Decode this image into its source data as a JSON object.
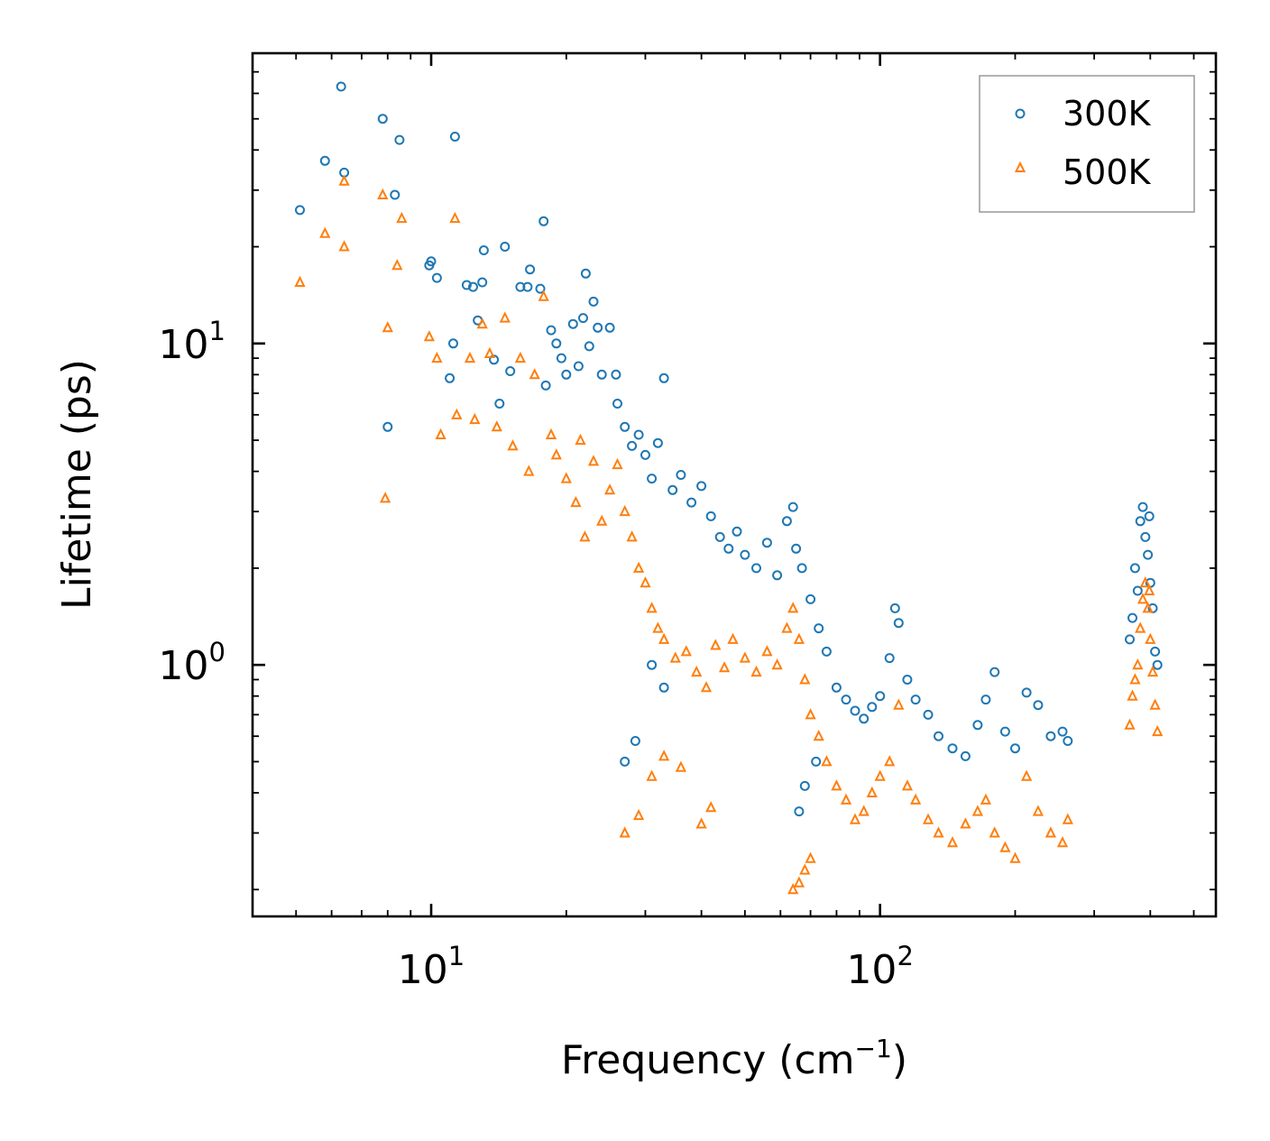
{
  "chart_data": {
    "type": "scatter",
    "title": "",
    "xlabel": "Frequency (cm",
    "xlabel_superscript": "−1",
    "xlabel_suffix": ")",
    "ylabel": "Lifetime (ps)",
    "xscale": "log",
    "yscale": "log",
    "xlim": [
      4.0,
      560
    ],
    "ylim": [
      0.165,
      80
    ],
    "x_ticks": [
      {
        "value": 10,
        "base": "10",
        "exponent": "1"
      },
      {
        "value": 100,
        "base": "10",
        "exponent": "2"
      }
    ],
    "y_ticks": [
      {
        "value": 1,
        "base": "10",
        "exponent": "0"
      },
      {
        "value": 10,
        "base": "10",
        "exponent": "1"
      }
    ],
    "legend_position": "top-right",
    "series": [
      {
        "name": "300K",
        "marker": "circle",
        "color": "#1f77b4",
        "points": [
          [
            5.1,
            26
          ],
          [
            5.8,
            37
          ],
          [
            6.3,
            63
          ],
          [
            6.4,
            34
          ],
          [
            7.8,
            50
          ],
          [
            8.3,
            29
          ],
          [
            8.5,
            43
          ],
          [
            8.0,
            5.5
          ],
          [
            9.9,
            17.5
          ],
          [
            10.0,
            18
          ],
          [
            10.3,
            16
          ],
          [
            11.0,
            7.8
          ],
          [
            11.2,
            10
          ],
          [
            11.3,
            44
          ],
          [
            12.0,
            15.2
          ],
          [
            12.4,
            15.0
          ],
          [
            12.7,
            11.8
          ],
          [
            13.0,
            15.5
          ],
          [
            13.1,
            19.5
          ],
          [
            13.8,
            8.9
          ],
          [
            14.2,
            6.5
          ],
          [
            14.6,
            20
          ],
          [
            15.0,
            8.2
          ],
          [
            15.8,
            15.0
          ],
          [
            16.4,
            15.0
          ],
          [
            16.6,
            17.0
          ],
          [
            17.5,
            14.8
          ],
          [
            17.8,
            24
          ],
          [
            18.0,
            7.4
          ],
          [
            18.5,
            11.0
          ],
          [
            19.0,
            10.0
          ],
          [
            19.5,
            9.0
          ],
          [
            20.0,
            8.0
          ],
          [
            20.7,
            11.5
          ],
          [
            21.3,
            8.5
          ],
          [
            21.8,
            12.0
          ],
          [
            22.1,
            16.5
          ],
          [
            22.5,
            9.8
          ],
          [
            23.0,
            13.5
          ],
          [
            23.5,
            11.2
          ],
          [
            24.0,
            8.0
          ],
          [
            25.0,
            11.2
          ],
          [
            25.8,
            8.0
          ],
          [
            26.0,
            6.5
          ],
          [
            27.0,
            5.5
          ],
          [
            28.0,
            4.8
          ],
          [
            29.0,
            5.2
          ],
          [
            30.0,
            4.5
          ],
          [
            31.0,
            3.8
          ],
          [
            32.0,
            4.9
          ],
          [
            33.0,
            7.8
          ],
          [
            34.5,
            3.5
          ],
          [
            36.0,
            3.9
          ],
          [
            38.0,
            3.2
          ],
          [
            40.0,
            3.6
          ],
          [
            42.0,
            2.9
          ],
          [
            44.0,
            2.5
          ],
          [
            46.0,
            2.3
          ],
          [
            48.0,
            2.6
          ],
          [
            50.0,
            2.2
          ],
          [
            53.0,
            2.0
          ],
          [
            56.0,
            2.4
          ],
          [
            59.0,
            1.9
          ],
          [
            62.0,
            2.8
          ],
          [
            64.0,
            3.1
          ],
          [
            65.0,
            2.3
          ],
          [
            67.0,
            2.0
          ],
          [
            70.0,
            1.6
          ],
          [
            73.0,
            1.3
          ],
          [
            76.0,
            1.1
          ],
          [
            80.0,
            0.85
          ],
          [
            84.0,
            0.78
          ],
          [
            88.0,
            0.72
          ],
          [
            92.0,
            0.68
          ],
          [
            96.0,
            0.74
          ],
          [
            100.0,
            0.8
          ],
          [
            105.0,
            1.05
          ],
          [
            108.0,
            1.5
          ],
          [
            110.0,
            1.35
          ],
          [
            115.0,
            0.9
          ],
          [
            120.0,
            0.78
          ],
          [
            128.0,
            0.7
          ],
          [
            135.0,
            0.6
          ],
          [
            145.0,
            0.55
          ],
          [
            155.0,
            0.52
          ],
          [
            165.0,
            0.65
          ],
          [
            172.0,
            0.78
          ],
          [
            180.0,
            0.95
          ],
          [
            190.0,
            0.62
          ],
          [
            200.0,
            0.55
          ],
          [
            212.0,
            0.82
          ],
          [
            225.0,
            0.75
          ],
          [
            240.0,
            0.6
          ],
          [
            255.0,
            0.62
          ],
          [
            262.0,
            0.58
          ],
          [
            66.0,
            0.35
          ],
          [
            68.0,
            0.42
          ],
          [
            72.0,
            0.5
          ],
          [
            27.0,
            0.5
          ],
          [
            28.5,
            0.58
          ],
          [
            31.0,
            1.0
          ],
          [
            33.0,
            0.85
          ],
          [
            360,
            1.2
          ],
          [
            370,
            2.0
          ],
          [
            380,
            2.8
          ],
          [
            385,
            3.1
          ],
          [
            390,
            2.5
          ],
          [
            395,
            2.2
          ],
          [
            400,
            1.8
          ],
          [
            405,
            1.5
          ],
          [
            410,
            1.1
          ],
          [
            365,
            1.4
          ],
          [
            375,
            1.7
          ],
          [
            398,
            2.9
          ],
          [
            415,
            1.0
          ]
        ]
      },
      {
        "name": "500K",
        "marker": "triangle",
        "color": "#ff7f0e",
        "points": [
          [
            5.1,
            15.5
          ],
          [
            5.8,
            22
          ],
          [
            6.4,
            20
          ],
          [
            6.4,
            32
          ],
          [
            7.8,
            29
          ],
          [
            8.0,
            11.2
          ],
          [
            8.4,
            17.5
          ],
          [
            8.6,
            24.5
          ],
          [
            7.9,
            3.3
          ],
          [
            9.9,
            10.5
          ],
          [
            10.3,
            9.0
          ],
          [
            10.5,
            5.2
          ],
          [
            11.3,
            24.5
          ],
          [
            11.4,
            6.0
          ],
          [
            12.2,
            9.0
          ],
          [
            12.5,
            5.8
          ],
          [
            13.0,
            11.5
          ],
          [
            13.5,
            9.3
          ],
          [
            14.0,
            5.5
          ],
          [
            14.6,
            12.0
          ],
          [
            15.2,
            4.8
          ],
          [
            15.8,
            9.0
          ],
          [
            16.5,
            4.0
          ],
          [
            17.0,
            8.0
          ],
          [
            17.8,
            14.0
          ],
          [
            18.5,
            5.2
          ],
          [
            19.0,
            4.5
          ],
          [
            20.0,
            3.8
          ],
          [
            21.0,
            3.2
          ],
          [
            21.5,
            5.0
          ],
          [
            22.0,
            2.5
          ],
          [
            23.0,
            4.3
          ],
          [
            24.0,
            2.8
          ],
          [
            25.0,
            3.5
          ],
          [
            26.0,
            4.2
          ],
          [
            27.0,
            3.0
          ],
          [
            28.0,
            2.5
          ],
          [
            29.0,
            2.0
          ],
          [
            30.0,
            1.8
          ],
          [
            31.0,
            1.5
          ],
          [
            32.0,
            1.3
          ],
          [
            33.0,
            1.2
          ],
          [
            35.0,
            1.05
          ],
          [
            37.0,
            1.1
          ],
          [
            39.0,
            0.95
          ],
          [
            41.0,
            0.85
          ],
          [
            43.0,
            1.15
          ],
          [
            45.0,
            0.98
          ],
          [
            47.0,
            1.2
          ],
          [
            50.0,
            1.05
          ],
          [
            53.0,
            0.95
          ],
          [
            56.0,
            1.1
          ],
          [
            59.0,
            1.0
          ],
          [
            62.0,
            1.3
          ],
          [
            64.0,
            1.5
          ],
          [
            66.0,
            1.2
          ],
          [
            68.0,
            0.9
          ],
          [
            70.0,
            0.7
          ],
          [
            73.0,
            0.6
          ],
          [
            76.0,
            0.5
          ],
          [
            80.0,
            0.42
          ],
          [
            84.0,
            0.38
          ],
          [
            88.0,
            0.33
          ],
          [
            92.0,
            0.35
          ],
          [
            96.0,
            0.4
          ],
          [
            100.0,
            0.45
          ],
          [
            105.0,
            0.5
          ],
          [
            110.0,
            0.75
          ],
          [
            115.0,
            0.42
          ],
          [
            120.0,
            0.38
          ],
          [
            128.0,
            0.33
          ],
          [
            135.0,
            0.3
          ],
          [
            145.0,
            0.28
          ],
          [
            155.0,
            0.32
          ],
          [
            165.0,
            0.35
          ],
          [
            172.0,
            0.38
          ],
          [
            180.0,
            0.3
          ],
          [
            190.0,
            0.27
          ],
          [
            200.0,
            0.25
          ],
          [
            212.0,
            0.45
          ],
          [
            225.0,
            0.35
          ],
          [
            240.0,
            0.3
          ],
          [
            255.0,
            0.28
          ],
          [
            262.0,
            0.33
          ],
          [
            64.0,
            0.2
          ],
          [
            66.0,
            0.21
          ],
          [
            68.0,
            0.23
          ],
          [
            70.0,
            0.25
          ],
          [
            27.0,
            0.3
          ],
          [
            29.0,
            0.34
          ],
          [
            31.0,
            0.45
          ],
          [
            33.0,
            0.52
          ],
          [
            36.0,
            0.48
          ],
          [
            40.0,
            0.32
          ],
          [
            42.0,
            0.36
          ],
          [
            360,
            0.65
          ],
          [
            370,
            0.9
          ],
          [
            380,
            1.3
          ],
          [
            385,
            1.6
          ],
          [
            390,
            1.8
          ],
          [
            395,
            1.5
          ],
          [
            400,
            1.2
          ],
          [
            405,
            0.95
          ],
          [
            410,
            0.75
          ],
          [
            365,
            0.8
          ],
          [
            375,
            1.0
          ],
          [
            398,
            1.7
          ],
          [
            415,
            0.62
          ]
        ]
      }
    ]
  }
}
